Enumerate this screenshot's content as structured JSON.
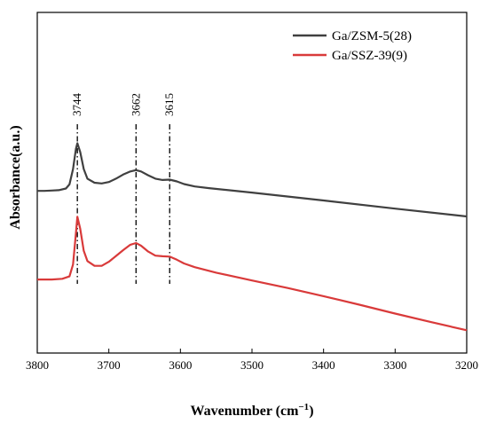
{
  "chart_data": {
    "type": "line",
    "xlabel": "Wavenumber (cm",
    "xlabel_sup": "−1",
    "xlabel_close": ")",
    "ylabel": "Absorbance(a.u.)",
    "xlim": [
      3800,
      3200
    ],
    "x_reversed": true,
    "x_ticks": [
      3800,
      3700,
      3600,
      3500,
      3400,
      3300,
      3200
    ],
    "y_ticks_shown": false,
    "ylim": [
      0,
      1
    ],
    "grid": false,
    "legend_position": "top-right",
    "series": [
      {
        "name": "Ga/ZSM-5(28)",
        "color": "#404040",
        "points": [
          [
            3800,
            0.476
          ],
          [
            3790,
            0.476
          ],
          [
            3780,
            0.477
          ],
          [
            3770,
            0.478
          ],
          [
            3760,
            0.483
          ],
          [
            3755,
            0.495
          ],
          [
            3750,
            0.54
          ],
          [
            3746,
            0.6
          ],
          [
            3744,
            0.616
          ],
          [
            3740,
            0.59
          ],
          [
            3735,
            0.54
          ],
          [
            3730,
            0.512
          ],
          [
            3720,
            0.5
          ],
          [
            3710,
            0.498
          ],
          [
            3700,
            0.502
          ],
          [
            3690,
            0.512
          ],
          [
            3680,
            0.524
          ],
          [
            3670,
            0.533
          ],
          [
            3662,
            0.537
          ],
          [
            3655,
            0.533
          ],
          [
            3645,
            0.522
          ],
          [
            3635,
            0.512
          ],
          [
            3625,
            0.508
          ],
          [
            3615,
            0.509
          ],
          [
            3605,
            0.504
          ],
          [
            3595,
            0.496
          ],
          [
            3580,
            0.489
          ],
          [
            3560,
            0.484
          ],
          [
            3500,
            0.471
          ],
          [
            3400,
            0.448
          ],
          [
            3300,
            0.424
          ],
          [
            3200,
            0.401
          ]
        ]
      },
      {
        "name": "Ga/SSZ-39(9)",
        "color": "#d93a3a",
        "points": [
          [
            3800,
            0.216
          ],
          [
            3780,
            0.216
          ],
          [
            3765,
            0.218
          ],
          [
            3755,
            0.225
          ],
          [
            3750,
            0.26
          ],
          [
            3747,
            0.33
          ],
          [
            3744,
            0.4
          ],
          [
            3740,
            0.365
          ],
          [
            3735,
            0.3
          ],
          [
            3730,
            0.27
          ],
          [
            3720,
            0.256
          ],
          [
            3710,
            0.256
          ],
          [
            3700,
            0.268
          ],
          [
            3690,
            0.285
          ],
          [
            3680,
            0.302
          ],
          [
            3670,
            0.318
          ],
          [
            3662,
            0.323
          ],
          [
            3655,
            0.315
          ],
          [
            3645,
            0.298
          ],
          [
            3635,
            0.286
          ],
          [
            3625,
            0.284
          ],
          [
            3615,
            0.283
          ],
          [
            3605,
            0.274
          ],
          [
            3595,
            0.263
          ],
          [
            3580,
            0.252
          ],
          [
            3550,
            0.236
          ],
          [
            3500,
            0.213
          ],
          [
            3450,
            0.191
          ],
          [
            3400,
            0.167
          ],
          [
            3350,
            0.142
          ],
          [
            3300,
            0.116
          ],
          [
            3250,
            0.091
          ],
          [
            3200,
            0.067
          ]
        ]
      }
    ],
    "annotations": [
      {
        "label": "3744",
        "x": 3744
      },
      {
        "label": "3662",
        "x": 3662
      },
      {
        "label": "3615",
        "x": 3615
      }
    ]
  }
}
